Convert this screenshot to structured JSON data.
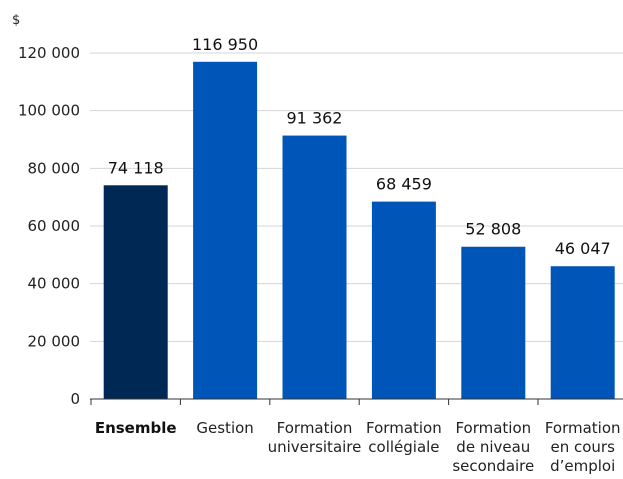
{
  "chart_data": {
    "type": "bar",
    "ylabel": "$",
    "xlabel": "",
    "title": "",
    "ylim": [
      0,
      120000
    ],
    "yticks": [
      0,
      20000,
      40000,
      60000,
      80000,
      100000,
      120000
    ],
    "ytick_labels": [
      "0",
      "20 000",
      "40 000",
      "60 000",
      "80 000",
      "100 000",
      "120 000"
    ],
    "categories": [
      [
        "Ensemble"
      ],
      [
        "Gestion"
      ],
      [
        "Formation",
        "universitaire"
      ],
      [
        "Formation",
        "collégiale"
      ],
      [
        "Formation",
        "de niveau",
        "secondaire"
      ],
      [
        "Formation",
        "en cours",
        "d’emploi"
      ]
    ],
    "values": [
      74118,
      116950,
      91362,
      68459,
      52808,
      46047
    ],
    "value_labels": [
      "74 118",
      "116 950",
      "91 362",
      "68 459",
      "52 808",
      "46 047"
    ],
    "highlight_index": 0,
    "grid": true,
    "legend": "none",
    "colors": {
      "highlight": "#002855",
      "bar": "#0055b8",
      "grid": "#d4d4d4",
      "axis": "#333333"
    }
  }
}
